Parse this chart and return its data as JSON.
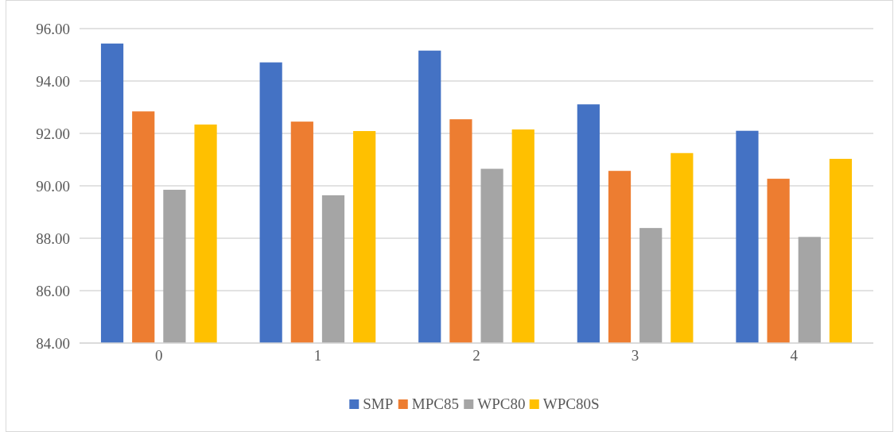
{
  "chart_data": {
    "type": "bar",
    "categories": [
      "0",
      "1",
      "2",
      "3",
      "4"
    ],
    "series": [
      {
        "name": "SMP",
        "color": "#4472c4",
        "values": [
          95.43,
          94.71,
          95.16,
          93.11,
          92.1
        ]
      },
      {
        "name": "MPC85",
        "color": "#ed7d31",
        "values": [
          92.84,
          92.45,
          92.54,
          90.57,
          90.27
        ]
      },
      {
        "name": "WPC80",
        "color": "#a5a5a5",
        "values": [
          89.85,
          89.64,
          90.65,
          88.39,
          88.05
        ]
      },
      {
        "name": "WPC80S",
        "color": "#ffc000",
        "values": [
          92.34,
          92.09,
          92.15,
          91.25,
          91.03
        ]
      }
    ],
    "ylim": [
      84,
      96
    ],
    "yticks": [
      {
        "value": 84,
        "label": "84.00"
      },
      {
        "value": 86,
        "label": "86.00"
      },
      {
        "value": 88,
        "label": "88.00"
      },
      {
        "value": 90,
        "label": "90.00"
      },
      {
        "value": 92,
        "label": "92.00"
      },
      {
        "value": 94,
        "label": "94.00"
      },
      {
        "value": 96,
        "label": "96.00"
      }
    ],
    "grid": "y",
    "legend": "bottom"
  }
}
